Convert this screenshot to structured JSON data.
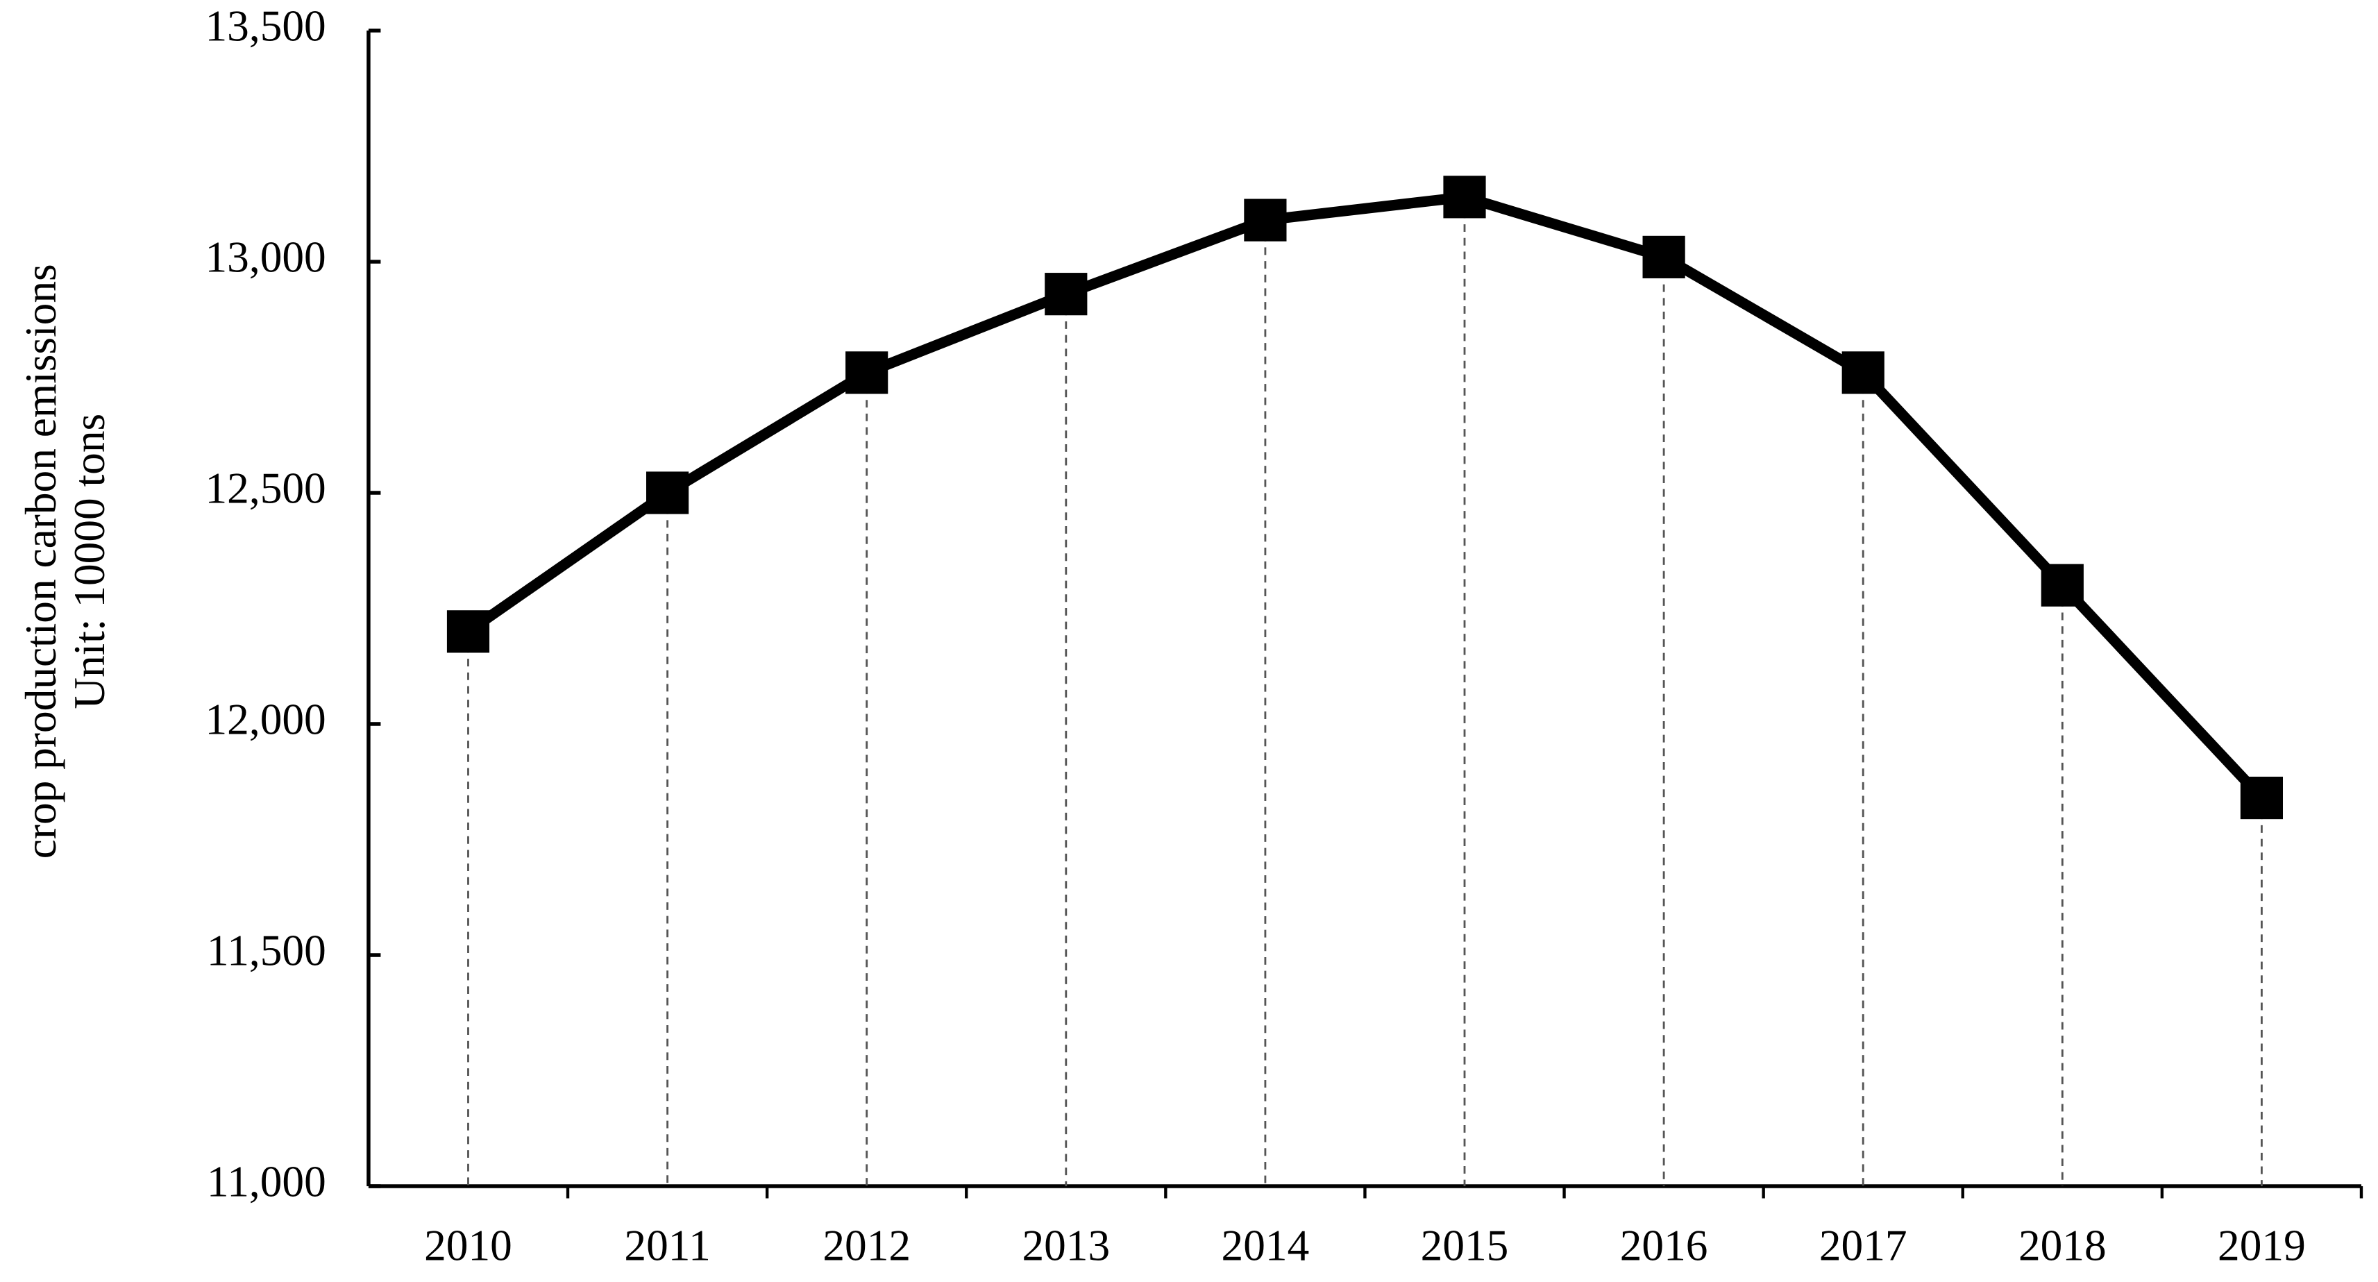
{
  "chart_data": {
    "type": "line",
    "y_label": [
      "crop production carbon emissions",
      "Unit: 10000 tons"
    ],
    "categories": [
      "2010",
      "2011",
      "2012",
      "2013",
      "2014",
      "2015",
      "2016",
      "2017",
      "2018",
      "2019"
    ],
    "values": [
      12200,
      12500,
      12760,
      12930,
      13090,
      13140,
      13010,
      12760,
      12300,
      11840
    ],
    "color": "#000000",
    "ylim": [
      11000,
      13500
    ],
    "yticks": [
      {
        "value": 11000,
        "label": "11,000"
      },
      {
        "value": 11500,
        "label": "11,500"
      },
      {
        "value": 12000,
        "label": "12,000"
      },
      {
        "value": 12500,
        "label": "12,500"
      },
      {
        "value": 13000,
        "label": "13,000"
      },
      {
        "value": 13500,
        "label": "13,500"
      }
    ],
    "drop_lines": true
  }
}
